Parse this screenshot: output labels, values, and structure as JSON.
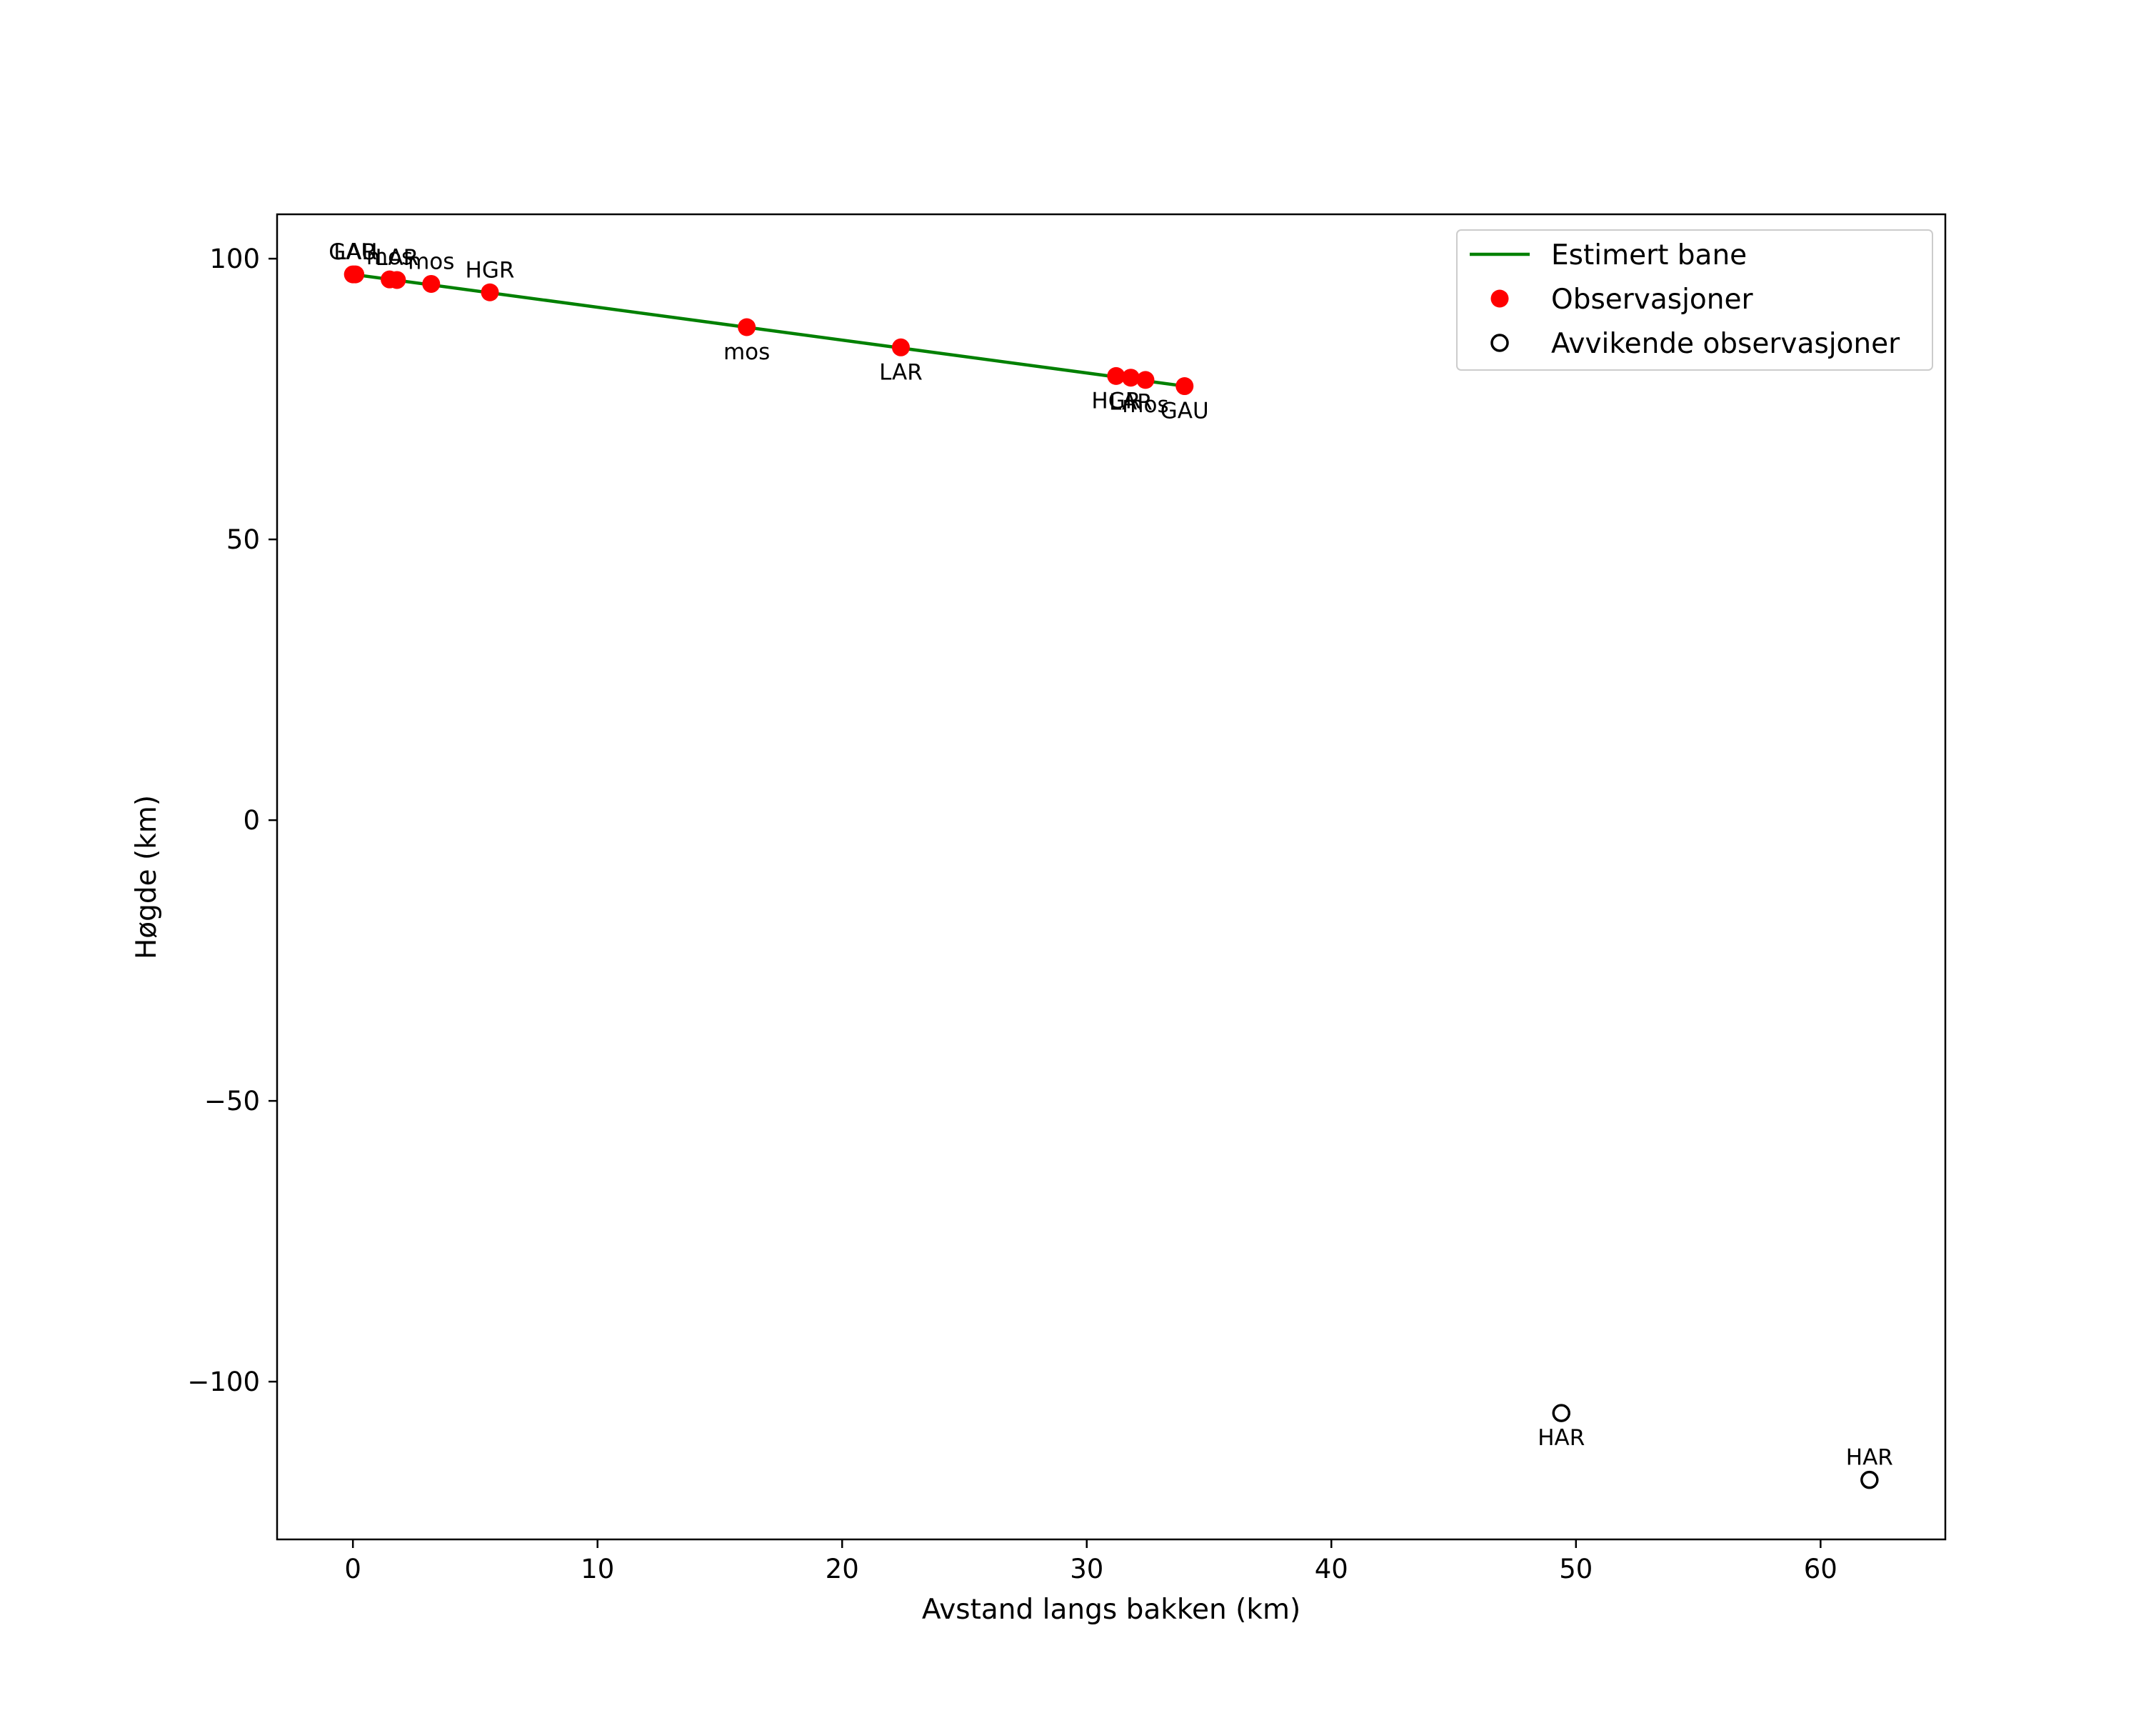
{
  "chart_data": {
    "type": "scatter",
    "title": "",
    "xlabel": "Avstand langs bakken (km)",
    "ylabel": "Høgde (km)",
    "xlim": [
      -3.1,
      65.1
    ],
    "ylim": [
      -128.1,
      107.9
    ],
    "xticks": [
      0,
      10,
      20,
      30,
      40,
      50,
      60
    ],
    "xtick_labels": [
      "0",
      "10",
      "20",
      "30",
      "40",
      "50",
      "60"
    ],
    "yticks": [
      100,
      50,
      0,
      -50,
      -100
    ],
    "ytick_labels": [
      "100",
      "50",
      "0",
      "−50",
      "−100"
    ],
    "grid": false,
    "legend_position": "top-right",
    "colors": {
      "estimated_path": "#008000",
      "observations": "#ff0000",
      "outliers": "#000000"
    },
    "legend": [
      {
        "kind": "line",
        "label": "Estimert bane"
      },
      {
        "kind": "observation",
        "label": "Observasjoner"
      },
      {
        "kind": "outlier",
        "label": "Avvikende observasjoner"
      }
    ],
    "series": [
      {
        "name": "Estimert bane",
        "kind": "line",
        "x": [
          0.0,
          34.0
        ],
        "y": [
          97.2,
          77.3
        ]
      },
      {
        "name": "Observasjoner",
        "kind": "observation",
        "points": [
          {
            "x": 0.0,
            "y": 97.2,
            "label": "GAU",
            "label_pos": "above"
          },
          {
            "x": 0.1,
            "y": 97.2,
            "label": "LAR",
            "label_pos": "above"
          },
          {
            "x": 1.5,
            "y": 96.3,
            "label": "mos",
            "label_pos": "above"
          },
          {
            "x": 1.8,
            "y": 96.2,
            "label": "LAR",
            "label_pos": "above"
          },
          {
            "x": 3.2,
            "y": 95.5,
            "label": "mos",
            "label_pos": "above"
          },
          {
            "x": 5.6,
            "y": 94.0,
            "label": "HGR",
            "label_pos": "above"
          },
          {
            "x": 16.1,
            "y": 87.8,
            "label": "mos",
            "label_pos": "below"
          },
          {
            "x": 22.4,
            "y": 84.2,
            "label": "LAR",
            "label_pos": "below"
          },
          {
            "x": 31.2,
            "y": 79.1,
            "label": "HGR",
            "label_pos": "below"
          },
          {
            "x": 31.8,
            "y": 78.8,
            "label": "LAR",
            "label_pos": "below"
          },
          {
            "x": 32.4,
            "y": 78.4,
            "label": "mos",
            "label_pos": "below"
          },
          {
            "x": 34.0,
            "y": 77.3,
            "label": "GAU",
            "label_pos": "below"
          }
        ]
      },
      {
        "name": "Avvikende observasjoner",
        "kind": "outlier",
        "points": [
          {
            "x": 49.4,
            "y": -105.6,
            "label": "HAR",
            "label_pos": "below"
          },
          {
            "x": 62.0,
            "y": -117.5,
            "label": "HAR",
            "label_pos": "above"
          }
        ]
      }
    ]
  }
}
